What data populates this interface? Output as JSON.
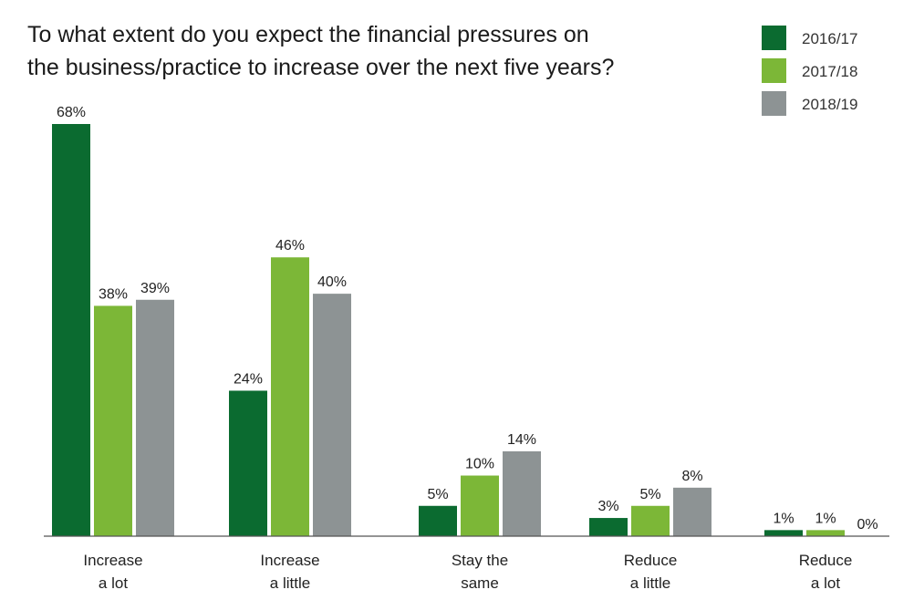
{
  "chart_data": {
    "type": "bar",
    "title_lines": [
      "To what extent do you expect the financial pressures on",
      "the business/practice to increase over the next five years?"
    ],
    "categories": [
      [
        "Increase",
        "a lot"
      ],
      [
        "Increase",
        "a little"
      ],
      [
        "Stay the",
        "same"
      ],
      [
        "Reduce",
        "a little"
      ],
      [
        "Reduce",
        "a lot"
      ]
    ],
    "series": [
      {
        "name": "2016/17",
        "color": "#0b6b30",
        "values": [
          68,
          24,
          5,
          3,
          1
        ],
        "labels": [
          "68%",
          "24%",
          "5%",
          "3%",
          "1%"
        ]
      },
      {
        "name": "2017/18",
        "color": "#7cb737",
        "values": [
          38,
          46,
          10,
          5,
          1
        ],
        "labels": [
          "38%",
          "46%",
          "10%",
          "5%",
          "1%"
        ]
      },
      {
        "name": "2018/19",
        "color": "#8d9394",
        "values": [
          39,
          40,
          14,
          8,
          0
        ],
        "labels": [
          "39%",
          "40%",
          "14%",
          "8%",
          "0%"
        ]
      }
    ],
    "ylim": [
      0,
      70
    ],
    "legend_position": "top-right",
    "grid": false
  }
}
